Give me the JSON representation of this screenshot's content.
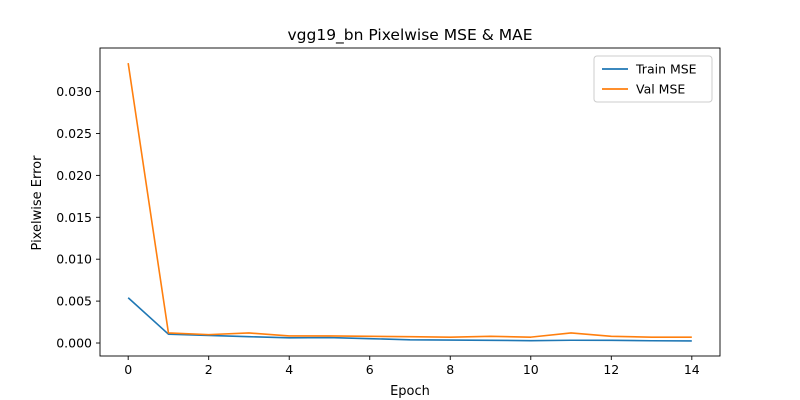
{
  "chart_data": {
    "type": "line",
    "title": "vgg19_bn Pixelwise MSE & MAE",
    "xlabel": "Epoch",
    "ylabel": "Pixelwise Error",
    "xlim": [
      -0.7,
      14.7
    ],
    "ylim": [
      -0.00155,
      0.0352
    ],
    "xticks": [
      0,
      2,
      4,
      6,
      8,
      10,
      12,
      14
    ],
    "yticks": [
      0.0,
      0.005,
      0.01,
      0.015,
      0.02,
      0.025,
      0.03
    ],
    "ytick_labels": [
      "0.000",
      "0.005",
      "0.010",
      "0.015",
      "0.020",
      "0.025",
      "0.030"
    ],
    "x": [
      0,
      1,
      2,
      3,
      4,
      5,
      6,
      7,
      8,
      9,
      10,
      11,
      12,
      13,
      14
    ],
    "legend_position": "upper-right",
    "grid": false,
    "series": [
      {
        "name": "Train MSE",
        "color": "#1f77b4",
        "values": [
          0.0054,
          0.00105,
          0.0009,
          0.00075,
          0.00062,
          0.00065,
          0.00052,
          0.00038,
          0.00035,
          0.00032,
          0.00028,
          0.00033,
          0.00032,
          0.00027,
          0.00025
        ]
      },
      {
        "name": "Val MSE",
        "color": "#ff7f0e",
        "values": [
          0.0334,
          0.0012,
          0.001,
          0.0012,
          0.00085,
          0.00085,
          0.0008,
          0.00075,
          0.0007,
          0.0008,
          0.0007,
          0.0012,
          0.0008,
          0.0007,
          0.0007
        ]
      }
    ]
  }
}
